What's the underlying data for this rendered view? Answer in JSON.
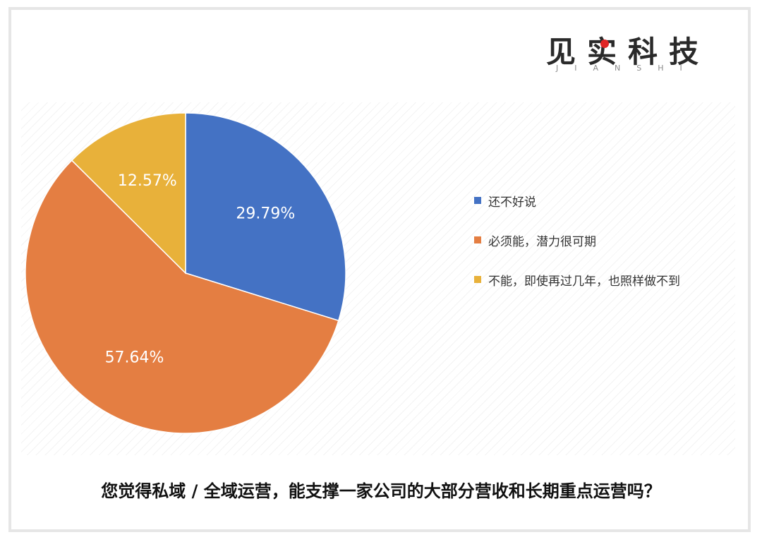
{
  "brand": {
    "name": "见实科技",
    "sub": "JIANSHI",
    "dot_color": "#e02424"
  },
  "question": "您觉得私域 / 全域运营，能支撑一家公司的大部分营收和长期重点运营吗？",
  "chart_data": {
    "type": "pie",
    "title": "",
    "slices": [
      {
        "label": "还不好说",
        "value": 29.79,
        "display": "29.79%",
        "color": "#4472c4"
      },
      {
        "label": "必须能，潜力很可期",
        "value": 57.64,
        "display": "57.64%",
        "color": "#e47e42"
      },
      {
        "label": "不能，即使再过几年，也照样做不到",
        "value": 12.57,
        "display": "12.57%",
        "color": "#e8b13a"
      }
    ],
    "start_angle": "12 o'clock",
    "direction": "clockwise",
    "legend_position": "right"
  }
}
